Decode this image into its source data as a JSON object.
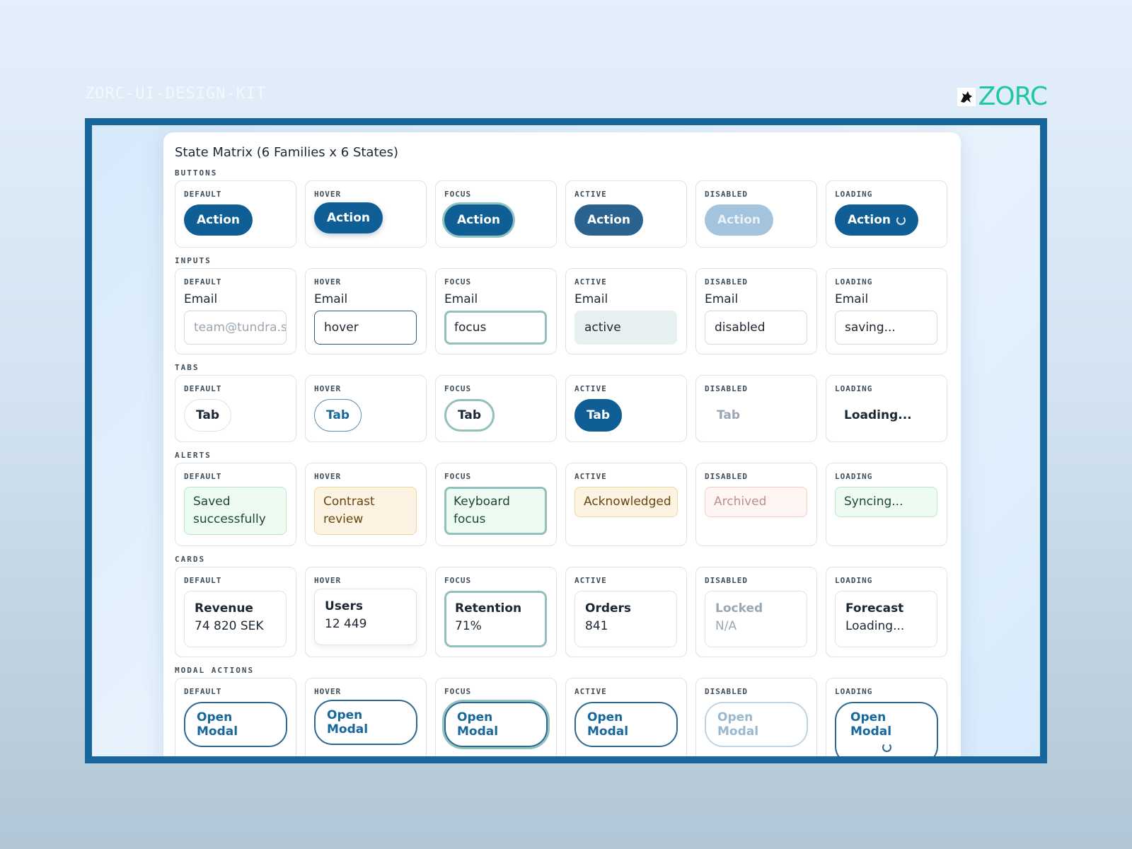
{
  "header": {
    "kit": "ZORC-UI-DESIGN-KIT",
    "logo": "ZORC"
  },
  "panel": {
    "title": "State Matrix (6 Families x 6 States)",
    "families": [
      {
        "name": "BUTTONS",
        "cells": [
          {
            "state": "DEFAULT",
            "text": "Action"
          },
          {
            "state": "HOVER",
            "text": "Action"
          },
          {
            "state": "FOCUS",
            "text": "Action"
          },
          {
            "state": "ACTIVE",
            "text": "Action"
          },
          {
            "state": "DISABLED",
            "text": "Action"
          },
          {
            "state": "LOADING",
            "text": "Action"
          }
        ]
      },
      {
        "name": "INPUTS",
        "cells": [
          {
            "state": "DEFAULT",
            "label": "Email",
            "text": "team@tundra.se"
          },
          {
            "state": "HOVER",
            "label": "Email",
            "text": "hover"
          },
          {
            "state": "FOCUS",
            "label": "Email",
            "text": "focus"
          },
          {
            "state": "ACTIVE",
            "label": "Email",
            "text": "active"
          },
          {
            "state": "DISABLED",
            "label": "Email",
            "text": "disabled"
          },
          {
            "state": "LOADING",
            "label": "Email",
            "text": "saving..."
          }
        ]
      },
      {
        "name": "TABS",
        "cells": [
          {
            "state": "DEFAULT",
            "text": "Tab"
          },
          {
            "state": "HOVER",
            "text": "Tab"
          },
          {
            "state": "FOCUS",
            "text": "Tab"
          },
          {
            "state": "ACTIVE",
            "text": "Tab"
          },
          {
            "state": "DISABLED",
            "text": "Tab"
          },
          {
            "state": "LOADING",
            "text": "Loading..."
          }
        ]
      },
      {
        "name": "ALERTS",
        "cells": [
          {
            "state": "DEFAULT",
            "text": "Saved successfully"
          },
          {
            "state": "HOVER",
            "text": "Contrast review"
          },
          {
            "state": "FOCUS",
            "text": "Keyboard focus"
          },
          {
            "state": "ACTIVE",
            "text": "Acknowledged"
          },
          {
            "state": "DISABLED",
            "text": "Archived"
          },
          {
            "state": "LOADING",
            "text": "Syncing..."
          }
        ]
      },
      {
        "name": "CARDS",
        "cells": [
          {
            "state": "DEFAULT",
            "title": "Revenue",
            "text": "74 820 SEK"
          },
          {
            "state": "HOVER",
            "title": "Users",
            "text": "12 449"
          },
          {
            "state": "FOCUS",
            "title": "Retention",
            "text": "71%"
          },
          {
            "state": "ACTIVE",
            "title": "Orders",
            "text": "841"
          },
          {
            "state": "DISABLED",
            "title": "Locked",
            "text": "N/A"
          },
          {
            "state": "LOADING",
            "title": "Forecast",
            "text": "Loading..."
          }
        ]
      },
      {
        "name": "MODAL ACTIONS",
        "cells": [
          {
            "state": "DEFAULT",
            "text": "Open Modal"
          },
          {
            "state": "HOVER",
            "text": "Open Modal"
          },
          {
            "state": "FOCUS",
            "text": "Open Modal"
          },
          {
            "state": "ACTIVE",
            "text": "Open Modal"
          },
          {
            "state": "DISABLED",
            "text": "Open Modal"
          },
          {
            "state": "LOADING",
            "text": "Open Modal"
          }
        ]
      }
    ]
  }
}
